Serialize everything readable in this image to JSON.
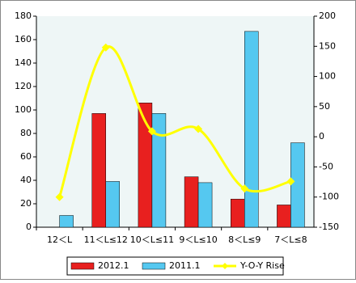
{
  "chart_data": {
    "type": "bar",
    "categories": [
      "12＜L",
      "11＜L≤12",
      "10＜L≤11",
      "9＜L≤10",
      "8＜L≤9",
      "7＜L≤8"
    ],
    "series": [
      {
        "name": "2012.1",
        "color": "#e8201f",
        "values": [
          0,
          97,
          106,
          43,
          24,
          19
        ]
      },
      {
        "name": "2011.1",
        "color": "#55c8f0",
        "values": [
          10,
          39,
          97,
          38,
          167,
          72
        ]
      },
      {
        "name": "Y-O-Y Rise",
        "color": "#ffff00",
        "axis": "y2",
        "type": "line",
        "values": [
          -100,
          148,
          9,
          13,
          -86,
          -74
        ]
      }
    ],
    "ylim": [
      0,
      180
    ],
    "yticks": [
      0,
      20,
      40,
      60,
      80,
      100,
      120,
      140,
      160,
      180
    ],
    "y2lim": [
      -150,
      200
    ],
    "y2ticks": [
      -150,
      -100,
      -50,
      0,
      50,
      100,
      150,
      200
    ],
    "legend": "bottom"
  }
}
